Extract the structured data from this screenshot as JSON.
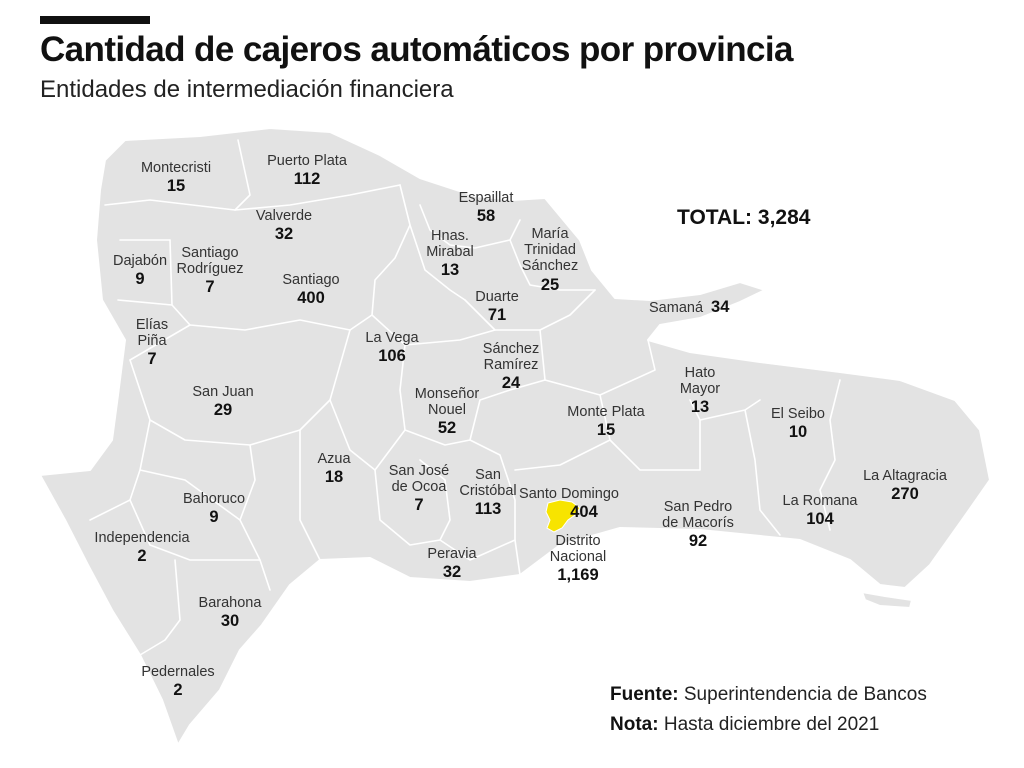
{
  "title": "Cantidad de cajeros automáticos por provincia",
  "subtitle": "Entidades de intermediación financiera",
  "total": {
    "label": "TOTAL:",
    "value": "3,284"
  },
  "colors": {
    "land": "#e3e3e3",
    "border": "#ffffff",
    "highlight": "#f7e400",
    "text": "#111111"
  },
  "provinces": [
    {
      "id": "montecristi",
      "name": "Montecristi",
      "value": "15"
    },
    {
      "id": "puerto-plata",
      "name": "Puerto Plata",
      "value": "112"
    },
    {
      "id": "espaillat",
      "name": "Espaillat",
      "value": "58"
    },
    {
      "id": "valverde",
      "name": "Valverde",
      "value": "32"
    },
    {
      "id": "hnas-mirabal",
      "name": "Hnas.\nMirabal",
      "value": "13"
    },
    {
      "id": "maria-trinidad-sanchez",
      "name": "María\nTrinidad\nSánchez",
      "value": "25"
    },
    {
      "id": "dajabon",
      "name": "Dajabón",
      "value": "9"
    },
    {
      "id": "santiago-rodriguez",
      "name": "Santiago\nRodríguez",
      "value": "7"
    },
    {
      "id": "santiago",
      "name": "Santiago",
      "value": "400"
    },
    {
      "id": "duarte",
      "name": "Duarte",
      "value": "71"
    },
    {
      "id": "samana",
      "name": "Samaná",
      "value": "34"
    },
    {
      "id": "elias-pina",
      "name": "Elías\nPiña",
      "value": "7"
    },
    {
      "id": "la-vega",
      "name": "La Vega",
      "value": "106"
    },
    {
      "id": "sanchez-ramirez",
      "name": "Sánchez\nRamírez",
      "value": "24"
    },
    {
      "id": "hato-mayor",
      "name": "Hato\nMayor",
      "value": "13"
    },
    {
      "id": "san-juan",
      "name": "San Juan",
      "value": "29"
    },
    {
      "id": "monsenor-nouel",
      "name": "Monseñor\nNouel",
      "value": "52"
    },
    {
      "id": "monte-plata",
      "name": "Monte Plata",
      "value": "15"
    },
    {
      "id": "el-seibo",
      "name": "El Seibo",
      "value": "10"
    },
    {
      "id": "azua",
      "name": "Azua",
      "value": "18"
    },
    {
      "id": "san-jose-de-ocoa",
      "name": "San José\nde Ocoa",
      "value": "7"
    },
    {
      "id": "san-cristobal",
      "name": "San\nCristóbal",
      "value": "113"
    },
    {
      "id": "la-altagracia",
      "name": "La Altagracia",
      "value": "270"
    },
    {
      "id": "bahoruco",
      "name": "Bahoruco",
      "value": "9"
    },
    {
      "id": "santo-domingo",
      "name": "Santo Domingo",
      "value": "404"
    },
    {
      "id": "san-pedro-de-macoris",
      "name": "San Pedro\nde Macorís",
      "value": "92"
    },
    {
      "id": "la-romana",
      "name": "La Romana",
      "value": "104"
    },
    {
      "id": "independencia",
      "name": "Independencia",
      "value": "2"
    },
    {
      "id": "distrito-nacional",
      "name": "Distrito\nNacional",
      "value": "1,169"
    },
    {
      "id": "peravia",
      "name": "Peravia",
      "value": "32"
    },
    {
      "id": "barahona",
      "name": "Barahona",
      "value": "30"
    },
    {
      "id": "pedernales",
      "name": "Pedernales",
      "value": "2"
    }
  ],
  "source": {
    "fuente_label": "Fuente:",
    "fuente_text": " Superintendencia de Bancos",
    "nota_label": "Nota:",
    "nota_text": " Hasta diciembre del 2021"
  }
}
